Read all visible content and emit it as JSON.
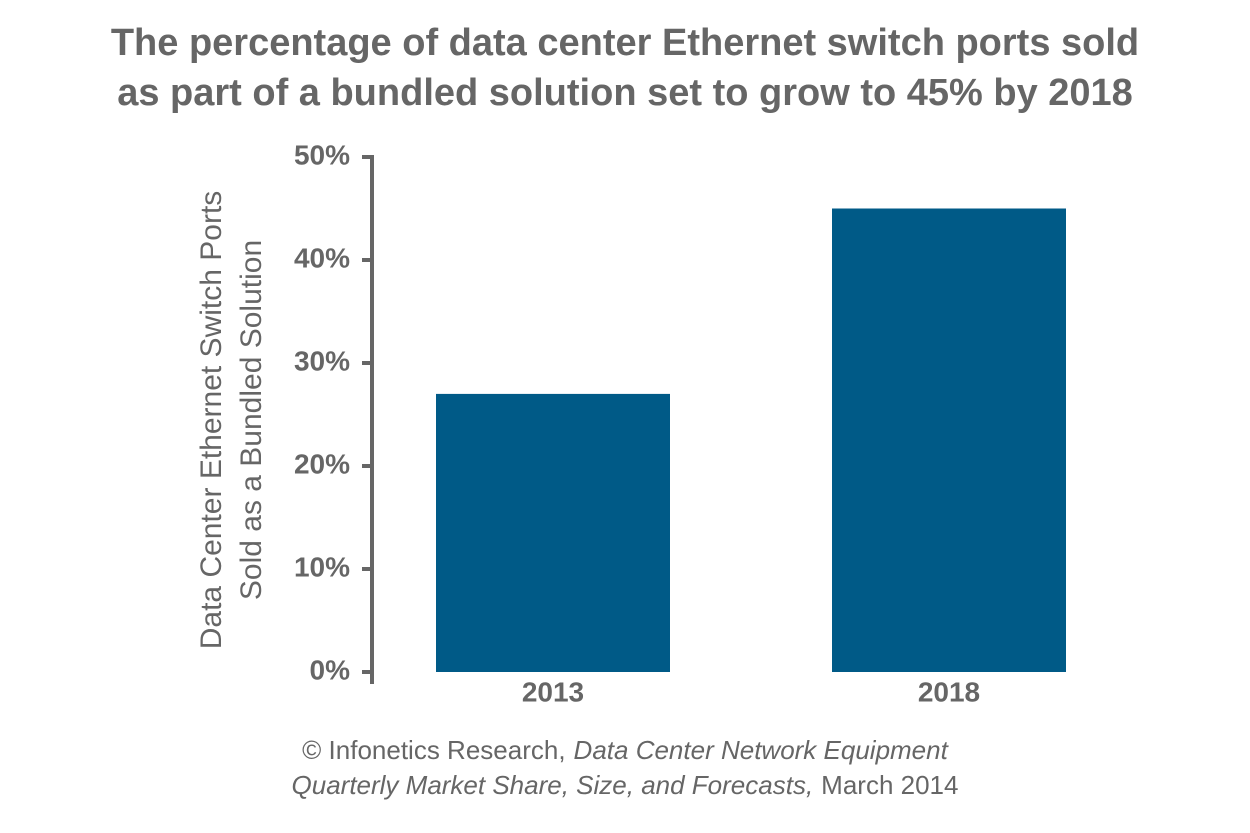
{
  "chart_data": {
    "type": "bar",
    "title": [
      "The percentage of data center Ethernet switch ports sold",
      "as part of a bundled solution set to grow to 45% by 2018"
    ],
    "y_label": [
      "Data Center Ethernet Switch Ports",
      "Sold as a Bundled Solution"
    ],
    "categories": [
      "2013",
      "2018"
    ],
    "values": [
      27,
      45
    ],
    "color": "#005a87",
    "ylim": [
      0,
      50
    ],
    "yticks": [
      {
        "value": 0,
        "label": "0%"
      },
      {
        "value": 10,
        "label": "10%"
      },
      {
        "value": 20,
        "label": "20%"
      },
      {
        "value": 30,
        "label": "30%"
      },
      {
        "value": 40,
        "label": "40%"
      },
      {
        "value": 50,
        "label": "50%"
      }
    ],
    "grid": false,
    "source": [
      "© Infonetics Research,",
      "Data Center Network Equipment",
      "Quarterly Market Share, Size, and Forecasts,",
      "March 2014"
    ]
  }
}
